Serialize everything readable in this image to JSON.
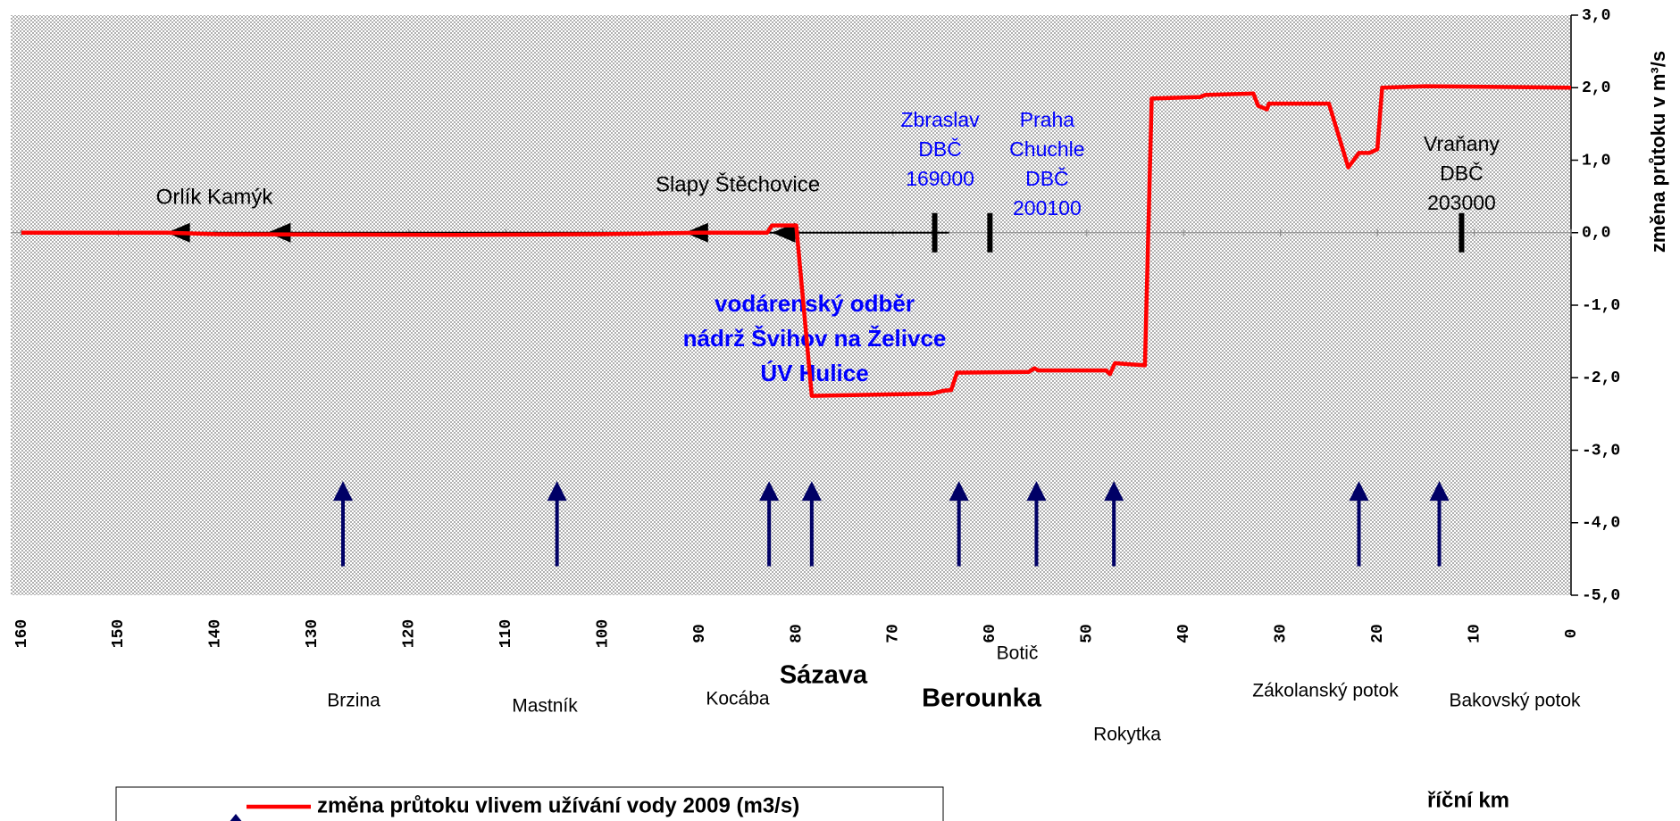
{
  "chart_data": {
    "type": "line",
    "xlim": [
      160,
      0
    ],
    "xticks": [
      160,
      150,
      140,
      130,
      120,
      110,
      100,
      90,
      80,
      70,
      60,
      50,
      40,
      30,
      20,
      10,
      0
    ],
    "ylim": [
      -5,
      3
    ],
    "yticks": [
      {
        "value": 3,
        "label": "3,0"
      },
      {
        "value": 2,
        "label": "2,0"
      },
      {
        "value": 1,
        "label": "1,0"
      },
      {
        "value": 0,
        "label": "0,0"
      },
      {
        "value": -1,
        "label": "-1,0"
      },
      {
        "value": -2,
        "label": "-2,0"
      },
      {
        "value": -3,
        "label": "-3,0"
      },
      {
        "value": -4,
        "label": "-4,0"
      },
      {
        "value": -5,
        "label": "-5,0"
      }
    ],
    "y_label": "změna průtoku v m³/s",
    "x_label": "říční km",
    "grid": false,
    "series": [
      {
        "name": "změna průtoku vlivem užívání vody 2009 (m3/s)",
        "color": "#ff0000",
        "x": [
          160,
          145,
          140,
          115,
          100,
          90,
          83,
          82.5,
          80,
          78.4,
          70,
          66,
          64.8,
          64,
          63.4,
          56,
          55.4,
          55,
          48,
          47.6,
          47.1,
          44,
          43.3,
          38.3,
          37.8,
          32.8,
          32.3,
          31.4,
          31.2,
          25,
          23,
          21.9,
          20.8,
          20,
          19.5,
          15,
          0
        ],
        "values": [
          0,
          0,
          -0.02,
          -0.03,
          -0.02,
          0,
          0,
          0.1,
          0.1,
          -2.25,
          -2.23,
          -2.22,
          -2.18,
          -2.17,
          -1.93,
          -1.92,
          -1.87,
          -1.9,
          -1.9,
          -1.95,
          -1.8,
          -1.83,
          1.85,
          1.87,
          1.9,
          1.92,
          1.75,
          1.7,
          1.78,
          1.78,
          0.9,
          1.1,
          1.1,
          1.15,
          2.0,
          2.02,
          2.0
        ]
      }
    ],
    "reservoirs": {
      "km": [
        145,
        134.6,
        91.5,
        82.5
      ],
      "color": "#000000"
    },
    "reservoir_labels": [
      "Orlík Kamýk",
      "Slapy Štěchovice"
    ],
    "stations": [
      {
        "lines": [
          "Zbraslav",
          "DBČ",
          "169000"
        ],
        "km": 65.7,
        "color": "#0000ff"
      },
      {
        "lines": [
          "Praha",
          "Chuchle",
          "DBČ",
          "200100"
        ],
        "km": 60,
        "color": "#0000ff"
      },
      {
        "lines": [
          "Vraňany",
          "DBČ",
          "203000"
        ],
        "km": 11.3,
        "color": "#000000"
      }
    ],
    "annotation": {
      "lines": [
        "vodárenský odběr",
        "nádrž Švihov na Želivce",
        "ÚV Hulice"
      ],
      "color": "#0000ff"
    },
    "tributaries": {
      "names": [
        "Brzina",
        "Mastník",
        "Kocába",
        "Sázava",
        "Berounka",
        "Botič",
        "Rokytka",
        "Zákolanský potok",
        "Bakovský potok"
      ],
      "km": [
        126.8,
        104.7,
        82.8,
        78.4,
        63.2,
        55.2,
        47.2,
        21.9,
        13.6
      ],
      "color": "#000066"
    }
  }
}
